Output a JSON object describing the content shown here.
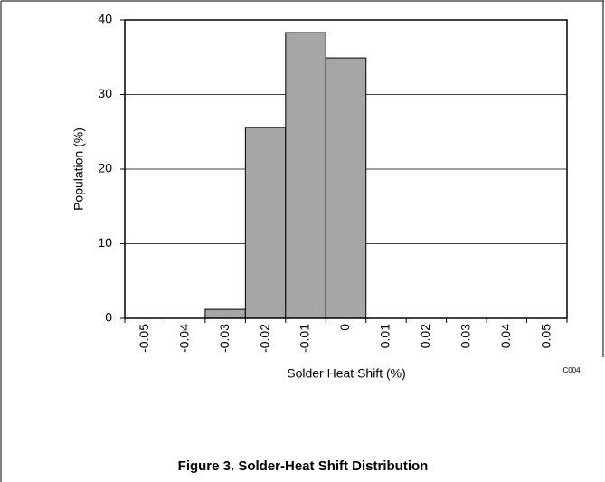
{
  "chart_data": {
    "type": "histogram",
    "caption": "Figure 3. Solder-Heat Shift Distribution",
    "x_label": "Solder Heat Shift (%)",
    "y_label": "Population (%)",
    "annotation": "C004",
    "bins": [
      -0.055,
      -0.045,
      -0.035,
      -0.025,
      -0.015,
      -0.005,
      0.005,
      0.015,
      0.025,
      0.035,
      0.045,
      0.055
    ],
    "values": [
      0,
      0,
      1.2,
      25.6,
      38.3,
      34.9,
      0,
      0,
      0,
      0,
      0
    ],
    "color": "#a6a6a6",
    "xlim": [
      -0.055,
      0.055
    ],
    "xticks": [
      -0.05,
      -0.04,
      -0.03,
      -0.02,
      -0.01,
      0,
      0.01,
      0.02,
      0.03,
      0.04,
      0.05
    ],
    "ylim": [
      0,
      40
    ],
    "yticks": [
      0,
      10,
      20,
      30,
      40
    ],
    "grid": true
  }
}
